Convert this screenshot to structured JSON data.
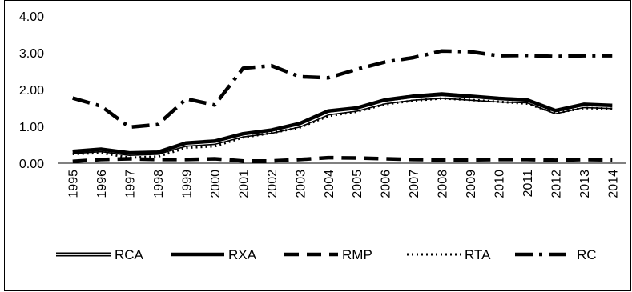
{
  "chart_data": {
    "type": "line",
    "title": "",
    "xlabel": "",
    "ylabel": "",
    "categories": [
      "1995",
      "1996",
      "1997",
      "1998",
      "1999",
      "2000",
      "2001",
      "2002",
      "2003",
      "2004",
      "2005",
      "2006",
      "2007",
      "2008",
      "2009",
      "2010",
      "2011",
      "2012",
      "2013",
      "2014"
    ],
    "ylim": [
      0,
      4
    ],
    "yticks": [
      "0.00",
      "1.00",
      "2.00",
      "3.00",
      "4.00"
    ],
    "grid": false,
    "legend": "bottom",
    "series": [
      {
        "name": "RCA",
        "style": "double",
        "values": [
          0.3,
          0.35,
          0.25,
          0.28,
          0.5,
          0.55,
          0.75,
          0.85,
          1.02,
          1.35,
          1.45,
          1.65,
          1.75,
          1.8,
          1.75,
          1.7,
          1.68,
          1.38,
          1.55,
          1.52
        ]
      },
      {
        "name": "RXA",
        "style": "solid",
        "values": [
          0.32,
          0.38,
          0.28,
          0.3,
          0.55,
          0.6,
          0.8,
          0.9,
          1.08,
          1.42,
          1.5,
          1.72,
          1.82,
          1.88,
          1.82,
          1.76,
          1.72,
          1.43,
          1.6,
          1.57
        ]
      },
      {
        "name": "RMP",
        "style": "dash",
        "values": [
          0.05,
          0.1,
          0.12,
          0.1,
          0.1,
          0.12,
          0.06,
          0.06,
          0.1,
          0.15,
          0.14,
          0.12,
          0.1,
          0.09,
          0.09,
          0.1,
          0.1,
          0.08,
          0.1,
          0.09
        ]
      },
      {
        "name": "RTA",
        "style": "dot",
        "values": [
          0.25,
          0.28,
          0.15,
          0.18,
          0.42,
          0.46,
          0.7,
          0.82,
          0.97,
          1.28,
          1.4,
          1.6,
          1.7,
          1.76,
          1.72,
          1.67,
          1.62,
          1.36,
          1.5,
          1.48
        ]
      },
      {
        "name": "RC",
        "style": "dashdot",
        "values": [
          1.77,
          1.55,
          0.98,
          1.05,
          1.75,
          1.58,
          2.58,
          2.65,
          2.35,
          2.32,
          2.55,
          2.75,
          2.87,
          3.05,
          3.03,
          2.92,
          2.93,
          2.9,
          2.92,
          2.92
        ]
      }
    ]
  }
}
